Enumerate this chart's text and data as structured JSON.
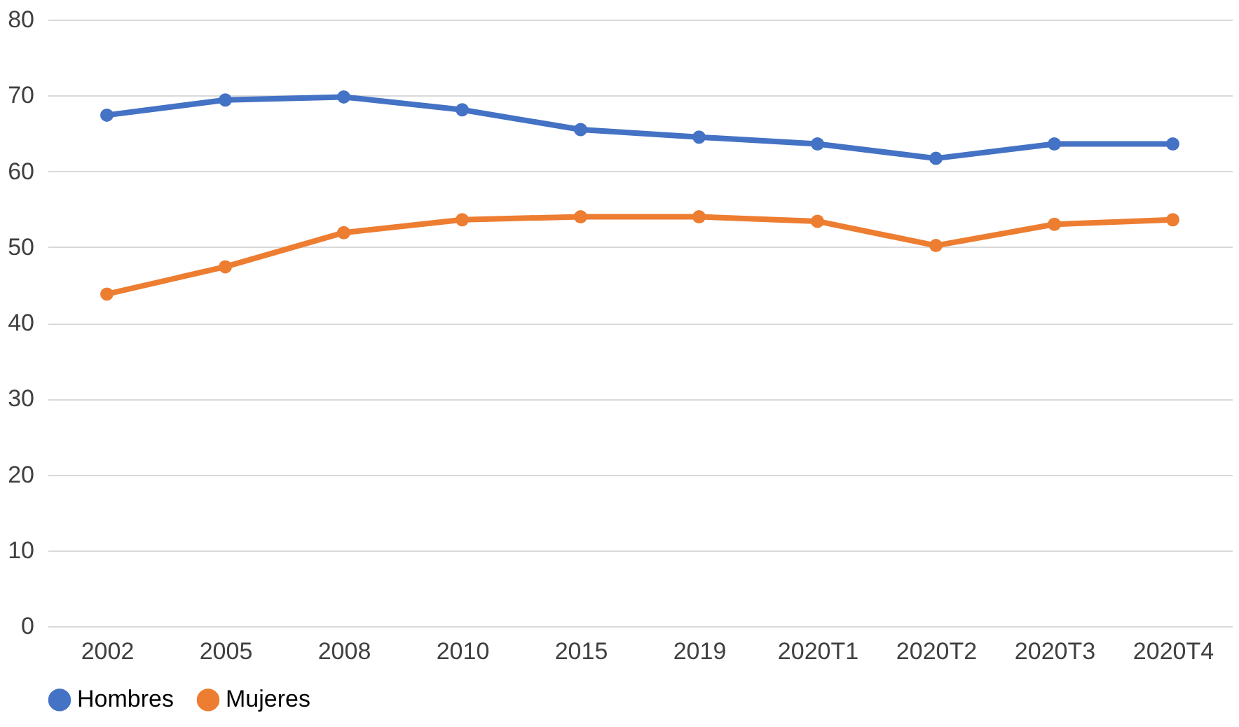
{
  "chart_data": {
    "type": "line",
    "categories": [
      "2002",
      "2005",
      "2008",
      "2010",
      "2015",
      "2019",
      "2020T1",
      "2020T2",
      "2020T3",
      "2020T4"
    ],
    "series": [
      {
        "name": "Hombres",
        "color": "#4472c4",
        "values": [
          67.4,
          69.4,
          69.8,
          68.1,
          65.5,
          64.5,
          63.6,
          61.7,
          63.6,
          63.6
        ]
      },
      {
        "name": "Mujeres",
        "color": "#ed7d31",
        "values": [
          43.8,
          47.4,
          51.9,
          53.6,
          54.0,
          54.0,
          53.4,
          50.2,
          53.0,
          53.6
        ]
      }
    ],
    "ylim": [
      0,
      80
    ],
    "yticks": [
      0,
      10,
      20,
      30,
      40,
      50,
      60,
      70,
      80
    ],
    "grid": "y",
    "legend": "bottom",
    "marker": "circle",
    "line_style": "solid"
  }
}
